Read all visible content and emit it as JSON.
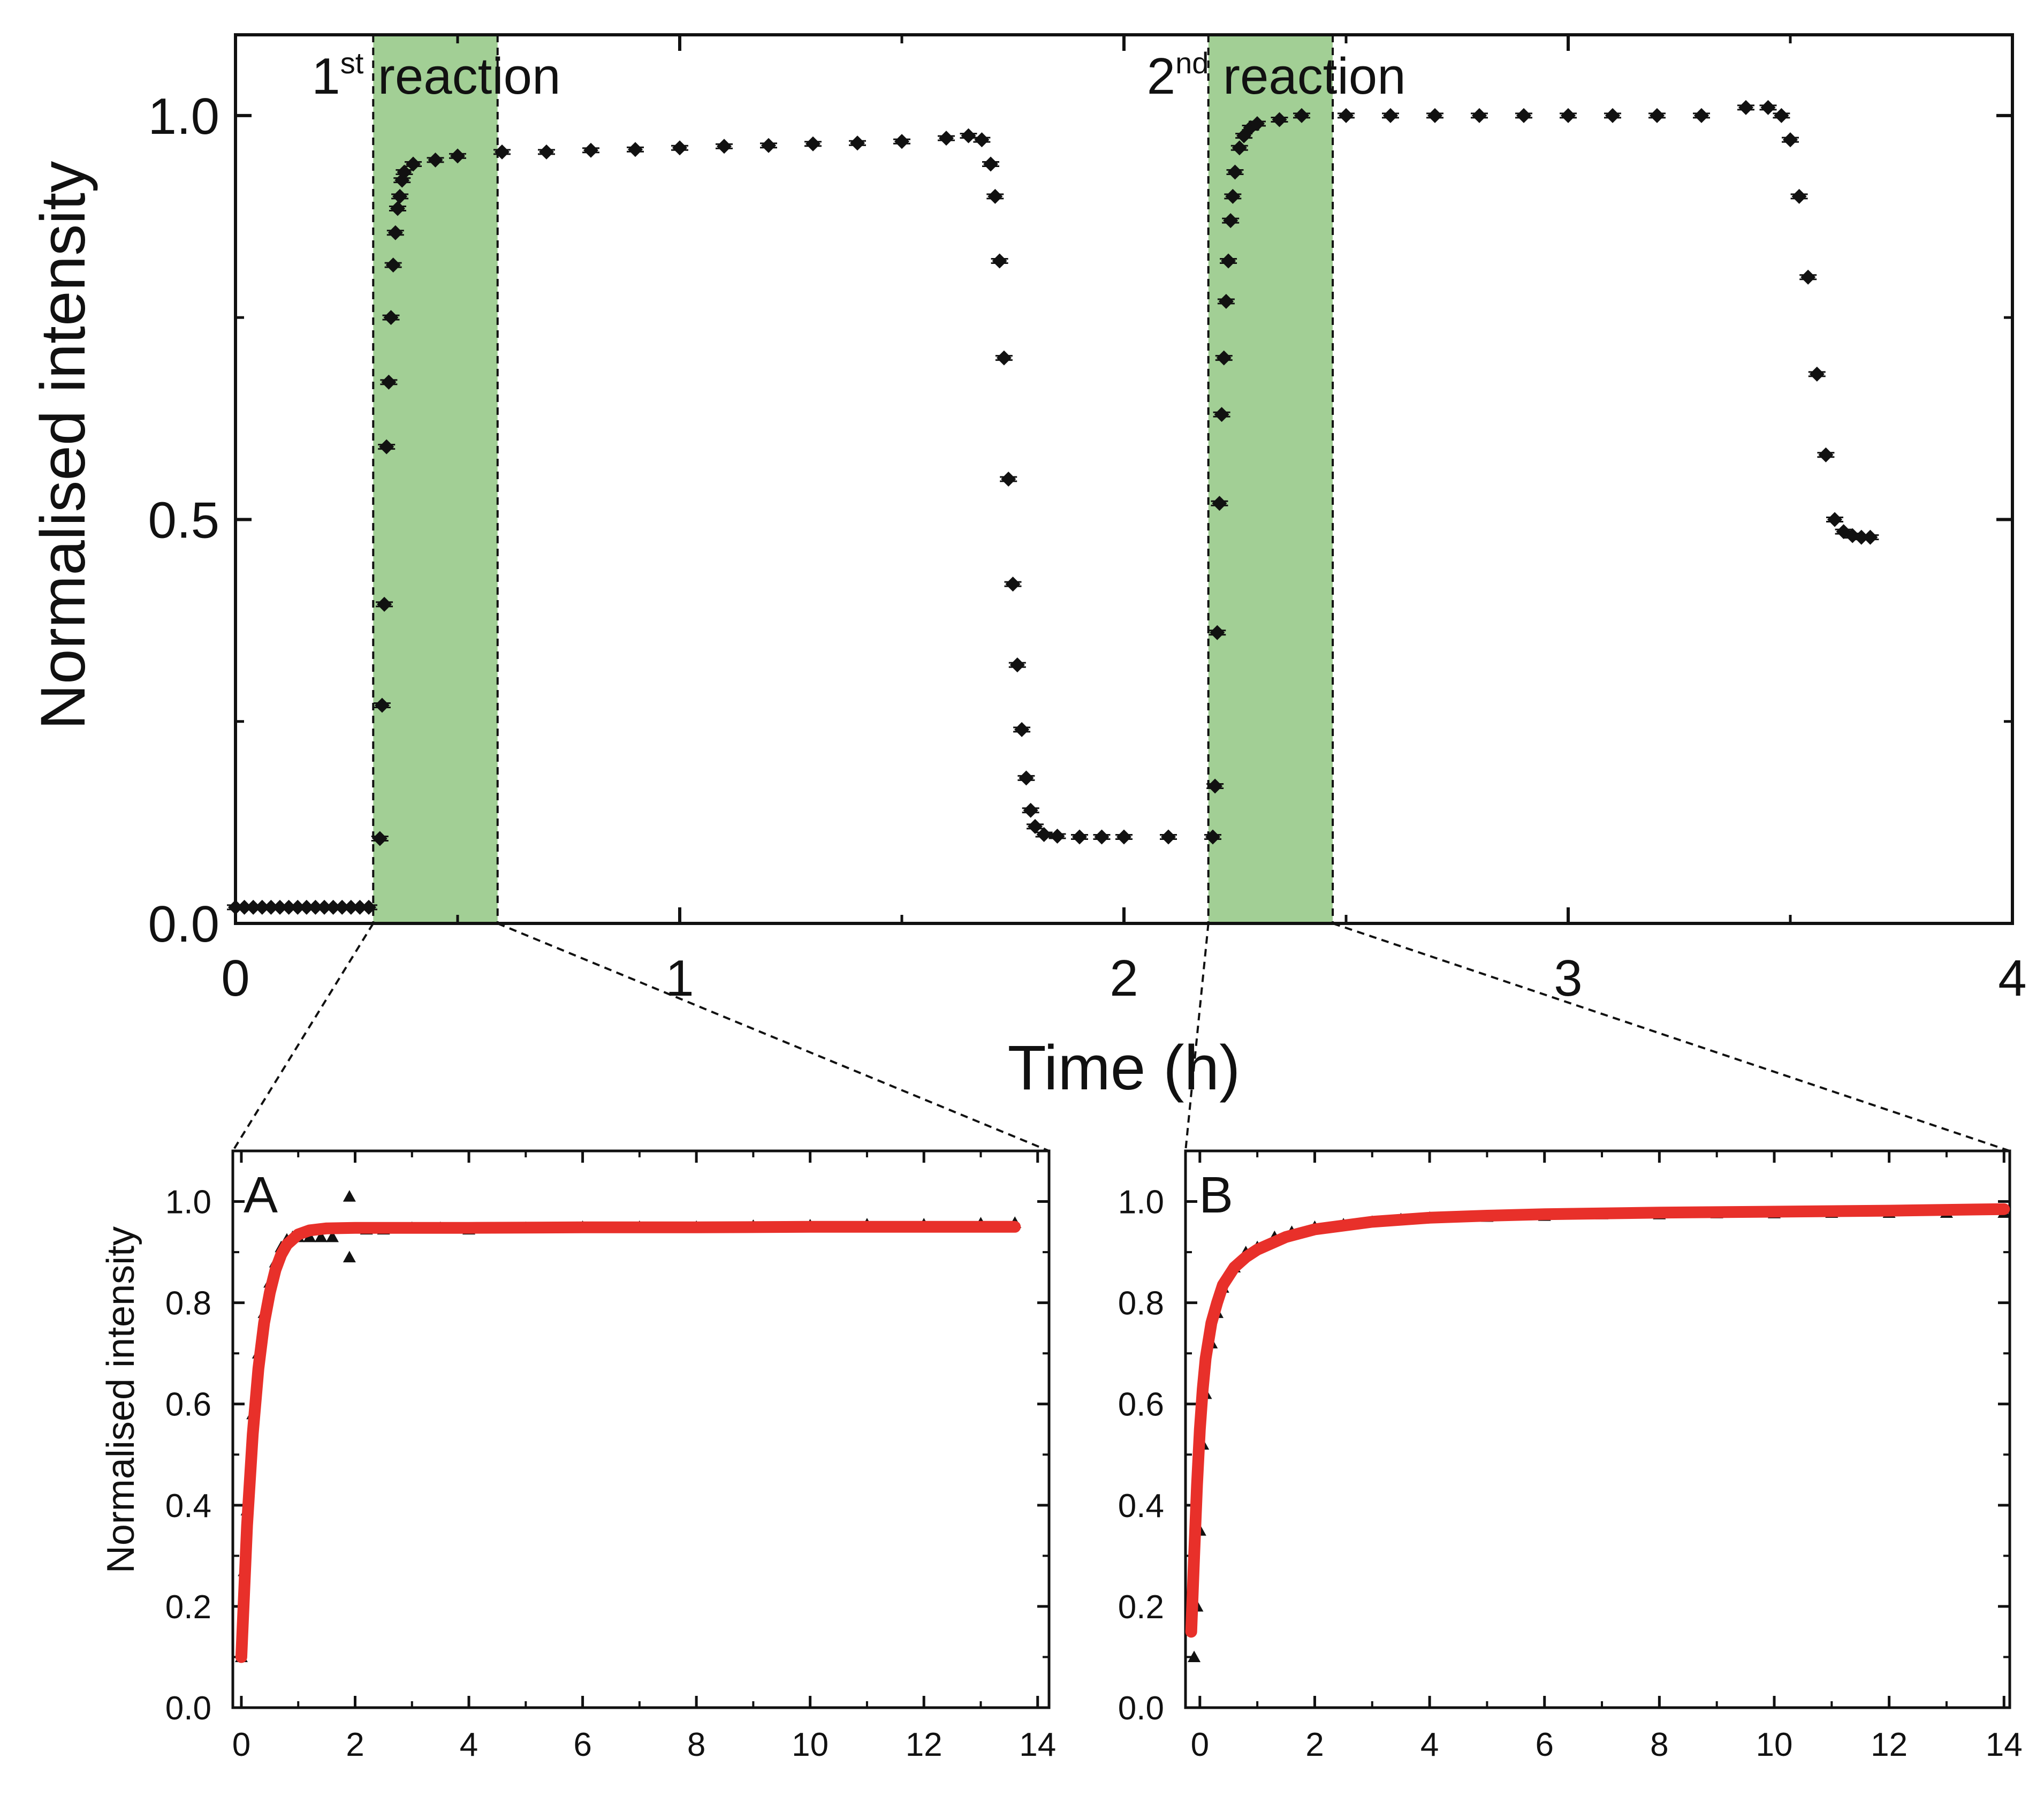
{
  "chart_data": [
    {
      "id": "main",
      "type": "scatter",
      "title": "",
      "xlabel": "Time (h)",
      "ylabel": "Normalised intensity",
      "xlim": [
        0,
        4
      ],
      "ylim": [
        0,
        1.1
      ],
      "xticks": [
        0,
        1,
        2,
        3,
        4
      ],
      "yticks": [
        0.0,
        0.5,
        1.0
      ],
      "xtick_labels": [
        "0",
        "1",
        "2",
        "3",
        "4"
      ],
      "ytick_labels": [
        "0.0",
        "0.5",
        "1.0"
      ],
      "regions": [
        {
          "start": 0.31,
          "end": 0.59,
          "label_main": "1",
          "label_sup": "st",
          "label_rest": " reaction"
        },
        {
          "start": 2.19,
          "end": 2.47,
          "label_main": "2",
          "label_sup": "nd",
          "label_rest": " reaction"
        }
      ],
      "series": [
        {
          "name": "Normalised intensity",
          "marker": "diamond",
          "color": "#111111",
          "x": [
            0.0,
            0.02,
            0.04,
            0.06,
            0.08,
            0.1,
            0.12,
            0.14,
            0.16,
            0.18,
            0.2,
            0.22,
            0.24,
            0.26,
            0.28,
            0.3,
            0.325,
            0.33,
            0.335,
            0.34,
            0.345,
            0.35,
            0.355,
            0.36,
            0.365,
            0.37,
            0.375,
            0.38,
            0.4,
            0.45,
            0.5,
            0.6,
            0.7,
            0.8,
            0.9,
            1.0,
            1.1,
            1.2,
            1.3,
            1.4,
            1.5,
            1.6,
            1.65,
            1.68,
            1.7,
            1.71,
            1.72,
            1.73,
            1.74,
            1.75,
            1.76,
            1.77,
            1.78,
            1.79,
            1.8,
            1.82,
            1.85,
            1.9,
            1.95,
            2.0,
            2.1,
            2.2,
            2.205,
            2.21,
            2.215,
            2.22,
            2.225,
            2.23,
            2.235,
            2.24,
            2.245,
            2.25,
            2.26,
            2.27,
            2.285,
            2.3,
            2.35,
            2.4,
            2.5,
            2.6,
            2.7,
            2.8,
            2.9,
            3.0,
            3.1,
            3.2,
            3.3,
            3.4,
            3.45,
            3.48,
            3.5,
            3.52,
            3.54,
            3.56,
            3.58,
            3.6,
            3.62,
            3.64,
            3.66,
            3.68
          ],
          "y": [
            0.02,
            0.02,
            0.02,
            0.02,
            0.02,
            0.02,
            0.02,
            0.02,
            0.02,
            0.02,
            0.02,
            0.02,
            0.02,
            0.02,
            0.02,
            0.02,
            0.105,
            0.27,
            0.395,
            0.59,
            0.67,
            0.75,
            0.815,
            0.855,
            0.885,
            0.9,
            0.92,
            0.93,
            0.94,
            0.945,
            0.95,
            0.955,
            0.955,
            0.957,
            0.958,
            0.96,
            0.962,
            0.963,
            0.965,
            0.966,
            0.968,
            0.972,
            0.975,
            0.97,
            0.94,
            0.9,
            0.82,
            0.7,
            0.55,
            0.42,
            0.32,
            0.24,
            0.18,
            0.14,
            0.12,
            0.11,
            0.108,
            0.107,
            0.107,
            0.107,
            0.107,
            0.107,
            0.17,
            0.36,
            0.52,
            0.63,
            0.7,
            0.77,
            0.82,
            0.87,
            0.9,
            0.93,
            0.96,
            0.975,
            0.985,
            0.99,
            0.995,
            1.0,
            1.0,
            1.0,
            1.0,
            1.0,
            1.0,
            1.0,
            1.0,
            1.0,
            1.0,
            1.01,
            1.01,
            1.0,
            0.97,
            0.9,
            0.8,
            0.68,
            0.58,
            0.5,
            0.485,
            0.48,
            0.478,
            0.478
          ]
        }
      ]
    },
    {
      "id": "A",
      "panel_label": "A",
      "type": "scatter",
      "xlabel": "",
      "ylabel": "Normalised intensity",
      "xlim": [
        -0.15,
        14.2
      ],
      "ylim": [
        0,
        1.1
      ],
      "xticks": [
        0,
        2,
        4,
        6,
        8,
        10,
        12,
        14
      ],
      "yticks": [
        0.0,
        0.2,
        0.4,
        0.6,
        0.8,
        1.0
      ],
      "xtick_labels": [
        "0",
        "2",
        "4",
        "6",
        "8",
        "10",
        "12",
        "14"
      ],
      "ytick_labels": [
        "0.0",
        "0.2",
        "0.4",
        "0.6",
        "0.8",
        "1.0"
      ],
      "series": [
        {
          "name": "data",
          "marker": "triangle",
          "color": "#111111",
          "x": [
            0.0,
            0.05,
            0.1,
            0.2,
            0.3,
            0.4,
            0.5,
            0.6,
            0.7,
            0.8,
            0.9,
            1.0,
            1.2,
            1.4,
            1.6,
            1.9,
            1.9,
            2.2,
            2.5,
            3.0,
            3.5,
            4.0,
            5.0,
            6.0,
            7.0,
            8.0,
            9.0,
            10.0,
            11.0,
            12.0,
            13.0,
            13.6
          ],
          "y": [
            0.1,
            0.27,
            0.39,
            0.58,
            0.7,
            0.78,
            0.84,
            0.88,
            0.91,
            0.925,
            0.93,
            0.93,
            0.93,
            0.93,
            0.93,
            1.01,
            0.89,
            0.945,
            0.945,
            0.948,
            0.948,
            0.945,
            0.948,
            0.95,
            0.95,
            0.95,
            0.952,
            0.953,
            0.955,
            0.955,
            0.957,
            0.958
          ]
        },
        {
          "name": "fit",
          "type": "line",
          "color": "#e8302a",
          "model": "exponential",
          "x": [
            0.0,
            0.1,
            0.2,
            0.3,
            0.4,
            0.5,
            0.6,
            0.7,
            0.8,
            1.0,
            1.2,
            1.5,
            2.0,
            2.5,
            3.0,
            4.0,
            6.0,
            8.0,
            10.0,
            12.0,
            13.6
          ],
          "y": [
            0.1,
            0.36,
            0.54,
            0.67,
            0.76,
            0.82,
            0.865,
            0.895,
            0.915,
            0.935,
            0.943,
            0.947,
            0.948,
            0.948,
            0.948,
            0.948,
            0.949,
            0.949,
            0.95,
            0.95,
            0.95
          ]
        }
      ]
    },
    {
      "id": "B",
      "panel_label": "B",
      "type": "scatter",
      "xlabel": "",
      "ylabel": "",
      "xlim": [
        -0.25,
        14.1
      ],
      "ylim": [
        0,
        1.1
      ],
      "xticks": [
        0,
        2,
        4,
        6,
        8,
        10,
        12,
        14
      ],
      "yticks": [
        0.0,
        0.2,
        0.4,
        0.6,
        0.8,
        1.0
      ],
      "xtick_labels": [
        "0",
        "2",
        "4",
        "6",
        "8",
        "10",
        "12",
        "14"
      ],
      "ytick_labels": [
        "0.0",
        "0.2",
        "0.4",
        "0.6",
        "0.8",
        "1.0"
      ],
      "series": [
        {
          "name": "data",
          "marker": "triangle",
          "color": "#111111",
          "x": [
            -0.1,
            -0.05,
            0.0,
            0.05,
            0.1,
            0.2,
            0.3,
            0.4,
            0.6,
            0.8,
            1.0,
            1.3,
            1.6,
            2.0,
            2.5,
            3.0,
            3.5,
            4.0,
            5.0,
            6.0,
            7.0,
            8.0,
            9.0,
            10.0,
            11.0,
            12.0,
            13.0,
            14.0
          ],
          "y": [
            0.1,
            0.2,
            0.35,
            0.52,
            0.62,
            0.72,
            0.78,
            0.83,
            0.87,
            0.9,
            0.91,
            0.93,
            0.94,
            0.95,
            0.955,
            0.96,
            0.965,
            0.968,
            0.97,
            0.972,
            0.975,
            0.975,
            0.977,
            0.977,
            0.978,
            0.978,
            0.978,
            0.978
          ]
        },
        {
          "name": "fit",
          "type": "line",
          "color": "#e8302a",
          "model": "hyperbolic",
          "x": [
            -0.15,
            -0.1,
            -0.05,
            0.0,
            0.05,
            0.1,
            0.2,
            0.3,
            0.4,
            0.6,
            0.8,
            1.0,
            1.5,
            2.0,
            3.0,
            4.0,
            5.0,
            6.0,
            8.0,
            10.0,
            12.0,
            14.0
          ],
          "y": [
            0.15,
            0.3,
            0.44,
            0.55,
            0.63,
            0.69,
            0.76,
            0.8,
            0.835,
            0.87,
            0.89,
            0.905,
            0.93,
            0.945,
            0.96,
            0.968,
            0.972,
            0.975,
            0.978,
            0.98,
            0.982,
            0.985
          ]
        }
      ]
    }
  ]
}
